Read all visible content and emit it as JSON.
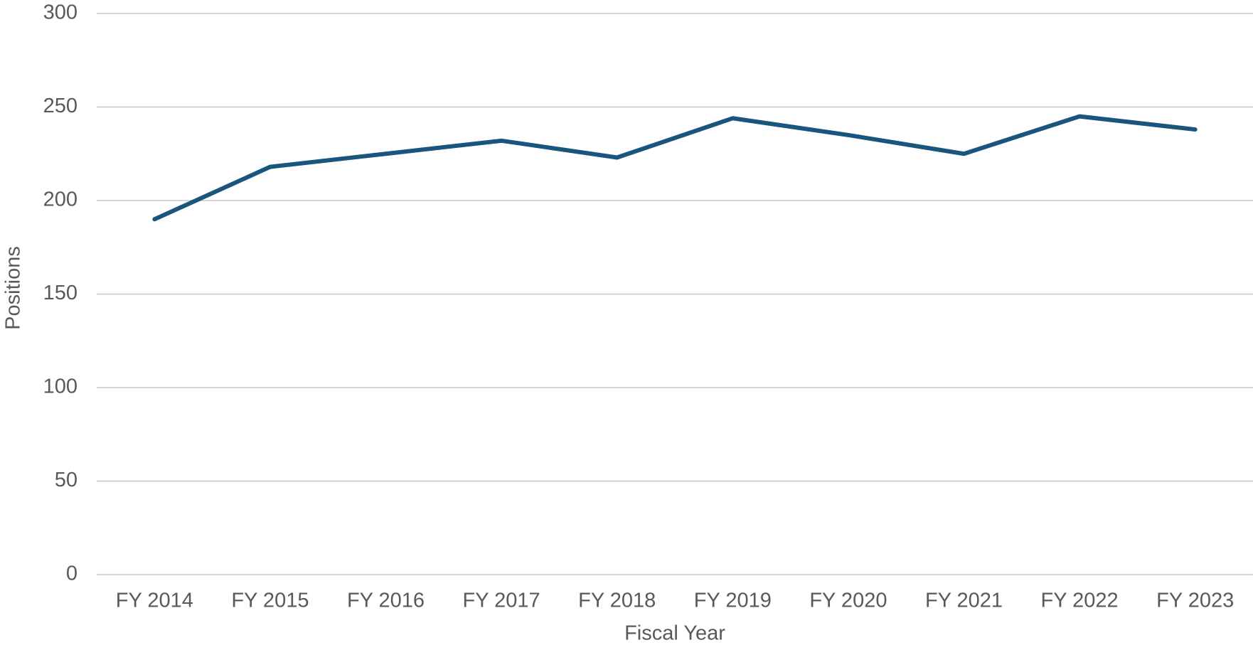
{
  "chart_data": {
    "type": "line",
    "x_label": "Fiscal Year",
    "y_label": "Positions",
    "categories": [
      "FY 2014",
      "FY 2015",
      "FY 2016",
      "FY 2017",
      "FY 2018",
      "FY 2019",
      "FY 2020",
      "FY 2021",
      "FY 2022",
      "FY 2023"
    ],
    "values": [
      190,
      218,
      225,
      232,
      223,
      244,
      235,
      225,
      245,
      238
    ],
    "color": "#1a557d",
    "ylim": [
      0,
      300
    ],
    "yticks": [
      0,
      50,
      100,
      150,
      200,
      250,
      300
    ],
    "grid": true
  }
}
